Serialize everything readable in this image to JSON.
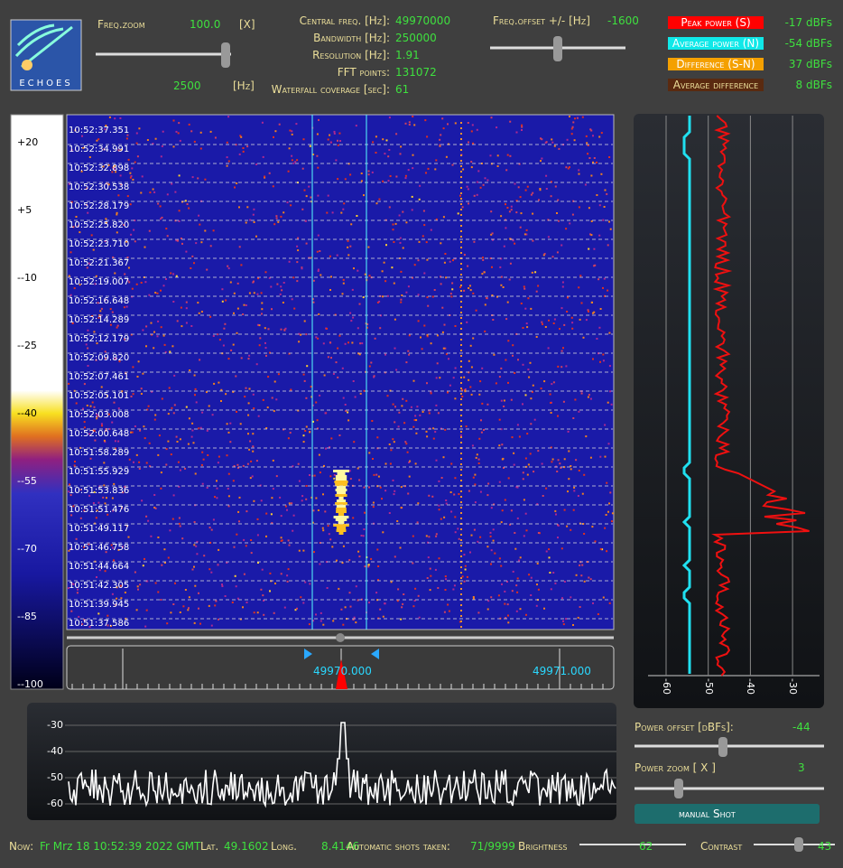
{
  "logo": "ECHOES",
  "freq_zoom": {
    "label": "Freq.zoom",
    "value": "100.0",
    "unit": "[X]",
    "hz_value": "2500",
    "hz_unit": "[Hz]"
  },
  "info": [
    {
      "label": "Central freq. [Hz]:",
      "value": "49970000"
    },
    {
      "label": "Bandwidth [Hz]:",
      "value": "250000"
    },
    {
      "label": "Resolution [Hz]:",
      "value": "1.91"
    },
    {
      "label": "FFT points:",
      "value": "131072"
    },
    {
      "label": "Waterfall coverage [sec]:",
      "value": "61"
    }
  ],
  "freq_offset": {
    "label": "Freq.offset +/- [Hz]",
    "value": "-1600"
  },
  "power_legend": [
    {
      "label": "Peak power (S)",
      "value": "-17 dBFs"
    },
    {
      "label": "Average power (N)",
      "value": "-54 dBFs"
    },
    {
      "label": "Difference (S-N)",
      "value": "37 dBFs"
    },
    {
      "label": "Average difference",
      "value": "8 dBFs"
    }
  ],
  "color_scale": [
    "+20",
    "+5",
    "--10",
    "--25",
    "--40",
    "--55",
    "--70",
    "--85",
    "--100"
  ],
  "timestamps": [
    "10:52:37.351",
    "10:52:34.991",
    "10:52:32.898",
    "10:52:30.538",
    "10:52:28.179",
    "10:52:25.820",
    "10:52:23.710",
    "10:52:21.367",
    "10:52:19.007",
    "10:52:16.648",
    "10:52:14.289",
    "10:52:12.179",
    "10:52:09.820",
    "10:52:07.461",
    "10:52:05.101",
    "10:52:03.008",
    "10:52:00.648",
    "10:51:58.289",
    "10:51:55.929",
    "10:51:53.836",
    "10:51:51.476",
    "10:51:49.117",
    "10:51:46.758",
    "10:51:44.664",
    "10:51:42.305",
    "10:51:39.945",
    "10:51:37.586"
  ],
  "freq_axis": [
    "49970.000",
    "49971.000"
  ],
  "power_axis": [
    "-60",
    "-50",
    "-40",
    "-30"
  ],
  "spectrum_axis": [
    "-30",
    "-40",
    "-50",
    "-60"
  ],
  "power_offset": {
    "label": "Power offset [dBFs]:",
    "value": "-44"
  },
  "power_zoom": {
    "label": "Power zoom  [ X ]",
    "value": "3"
  },
  "button": "manual Shot",
  "footer": {
    "now_label": "Now:",
    "now": "Fr Mrz 18 10:52:39 2022 GMT",
    "lat_label": "Lat.",
    "lat": "49.1602",
    "long_label": "Long.",
    "long": "8.4146",
    "shots_label": "Automatic shots taken:",
    "shots": "71/9999",
    "brightness_label": "Brightness",
    "brightness": "62",
    "contrast_label": "Contrast",
    "contrast": "43"
  }
}
